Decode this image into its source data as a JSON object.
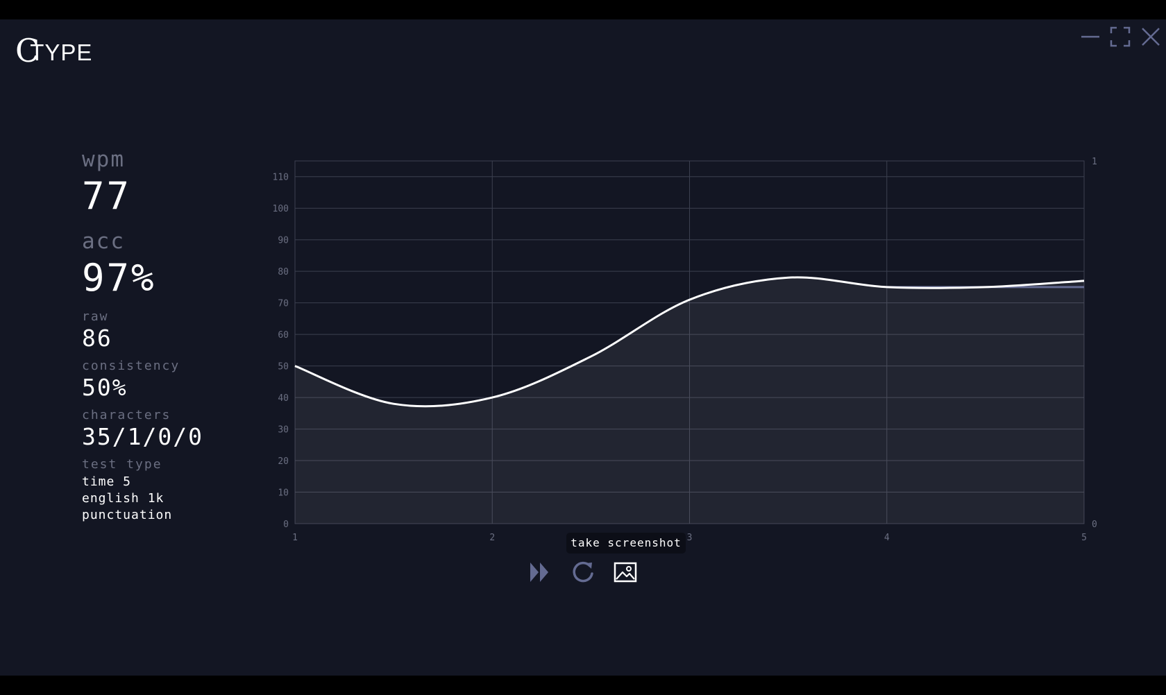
{
  "app": {
    "logo_letter": "C",
    "logo_text": "TYPE"
  },
  "window_controls": [
    {
      "name": "minimize-icon"
    },
    {
      "name": "maximize-icon"
    },
    {
      "name": "close-icon"
    }
  ],
  "stats": {
    "wpm_label": "wpm",
    "wpm_value": "77",
    "acc_label": "acc",
    "acc_value": "97%",
    "raw_label": "raw",
    "raw_value": "86",
    "consistency_label": "consistency",
    "consistency_value": "50%",
    "characters_label": "characters",
    "characters_value": "35/1/0/0",
    "test_type_label": "test type",
    "test_type_lines": [
      "time 5",
      "english 1k",
      "punctuation"
    ]
  },
  "chart_data": {
    "type": "line",
    "x": [
      1,
      1.5,
      2,
      2.5,
      3,
      3.5,
      4,
      4.5,
      5
    ],
    "series": [
      {
        "values": [
          50,
          38,
          40,
          53,
          71,
          78,
          75,
          75,
          77
        ],
        "color": "#ffffff"
      },
      {
        "values": [
          75,
          75
        ],
        "x": [
          4,
          5
        ],
        "color": "#646b92"
      }
    ],
    "xlim": [
      1,
      5
    ],
    "ylim": [
      0,
      115
    ],
    "x_ticks": [
      1,
      2,
      3,
      4,
      5
    ],
    "y_ticks": [
      0,
      10,
      20,
      30,
      40,
      50,
      60,
      70,
      80,
      90,
      100,
      110
    ],
    "y2_ticks": [
      0,
      1
    ],
    "grid": true
  },
  "tooltip": {
    "text": "take screenshot"
  },
  "actions": [
    {
      "name": "next-test-icon"
    },
    {
      "name": "restart-icon"
    },
    {
      "name": "screenshot-icon"
    }
  ],
  "colors": {
    "background": "#131623",
    "text": "#ffffff",
    "sub_text": "#6b6f82",
    "grid": "#3c4050",
    "icon": "#646b92"
  }
}
